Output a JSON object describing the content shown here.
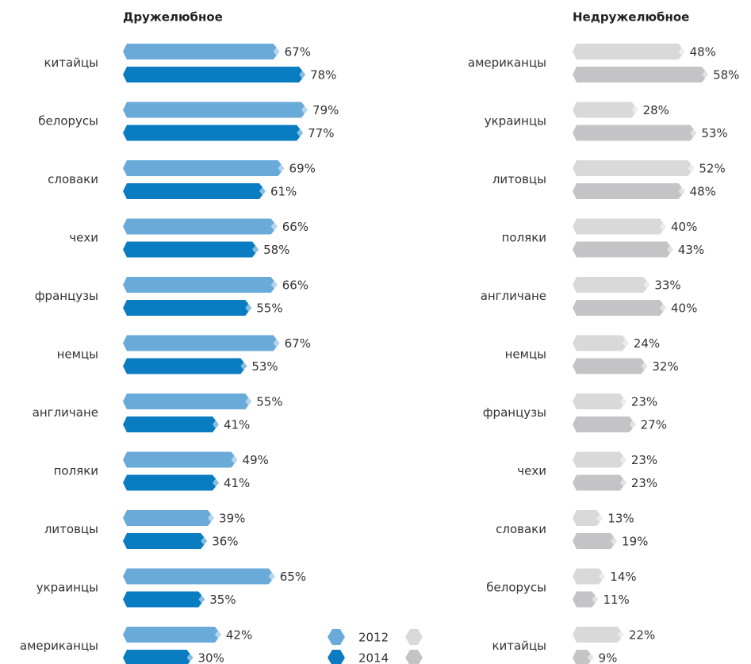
{
  "chart_data": [
    {
      "type": "bar",
      "orientation": "horizontal",
      "title": "Дружелюбное",
      "categories": [
        "китайцы",
        "белорусы",
        "словаки",
        "чехи",
        "французы",
        "немцы",
        "англичане",
        "поляки",
        "литовцы",
        "украинцы",
        "американцы"
      ],
      "xlim": [
        0,
        100
      ],
      "series": [
        {
          "name": "2012",
          "color": "#6aaad9",
          "values": [
            67,
            79,
            69,
            66,
            66,
            67,
            55,
            49,
            39,
            65,
            42
          ],
          "value_labels": [
            "67%",
            "79%",
            "69%",
            "66%",
            "66%",
            "67%",
            "55%",
            "49%",
            "39%",
            "65%",
            "42%"
          ]
        },
        {
          "name": "2014",
          "color": "#0a7cc1",
          "values": [
            78,
            77,
            61,
            58,
            55,
            53,
            41,
            41,
            36,
            35,
            30
          ],
          "value_labels": [
            "78%",
            "77%",
            "61%",
            "58%",
            "55%",
            "53%",
            "41%",
            "41%",
            "36%",
            "35%",
            "30%"
          ]
        }
      ]
    },
    {
      "type": "bar",
      "orientation": "horizontal",
      "title": "Недружелюбное",
      "categories": [
        "американцы",
        "украинцы",
        "литовцы",
        "поляки",
        "англичане",
        "немцы",
        "французы",
        "чехи",
        "словаки",
        "белорусы",
        "китайцы"
      ],
      "xlim": [
        0,
        100
      ],
      "series": [
        {
          "color": "#d9d9da",
          "values": [
            48,
            28,
            52,
            40,
            33,
            24,
            23,
            23,
            13,
            14,
            22
          ],
          "value_labels": [
            "48%",
            "28%",
            "52%",
            "40%",
            "33%",
            "24%",
            "23%",
            "23%",
            "13%",
            "14%",
            "22%"
          ]
        },
        {
          "color": "#c4c4c6",
          "values": [
            58,
            53,
            48,
            43,
            40,
            32,
            27,
            23,
            19,
            11,
            9
          ],
          "value_labels": [
            "58%",
            "53%",
            "48%",
            "43%",
            "40%",
            "32%",
            "27%",
            "23%",
            "19%",
            "11%",
            "9%"
          ]
        }
      ]
    }
  ]
}
